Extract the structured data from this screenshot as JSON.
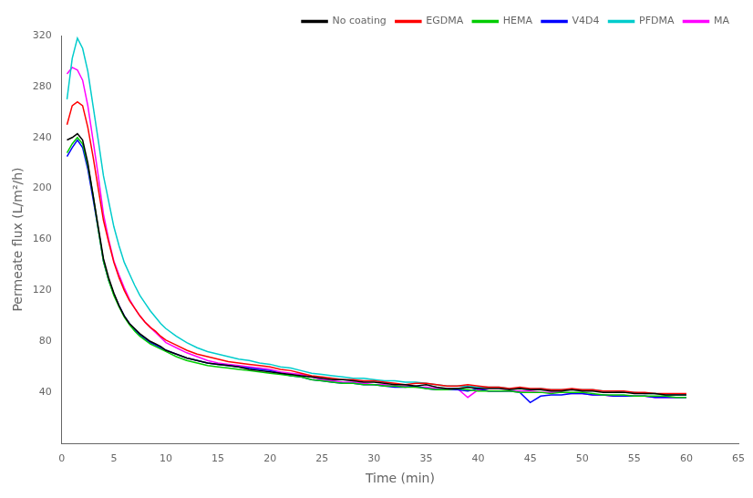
{
  "chart_data": {
    "type": "line",
    "xlabel": "Time (min)",
    "ylabel": "Permeate flux (L/m²/h)",
    "x": [
      0.5,
      1,
      1.5,
      2,
      2.5,
      3,
      3.5,
      4,
      4.5,
      5,
      5.5,
      6,
      6.5,
      7,
      7.5,
      8,
      8.5,
      9,
      9.5,
      10,
      11,
      12,
      13,
      14,
      15,
      16,
      17,
      18,
      19,
      20,
      21,
      22,
      23,
      24,
      25,
      26,
      27,
      28,
      29,
      30,
      31,
      32,
      33,
      34,
      35,
      36,
      37,
      38,
      39,
      40,
      41,
      42,
      43,
      44,
      45,
      46,
      47,
      48,
      49,
      50,
      51,
      52,
      53,
      54,
      55,
      56,
      57,
      58,
      59,
      60
    ],
    "series": [
      {
        "name": "No coating",
        "color": "#000000",
        "values": [
          238,
          240,
          243,
          238,
          220,
          195,
          170,
          145,
          130,
          118,
          108,
          100,
          94,
          90,
          86,
          83,
          80,
          78,
          76,
          73,
          70,
          67,
          65,
          63,
          62,
          61,
          60,
          58,
          57,
          56,
          55,
          54,
          53,
          52,
          51,
          50,
          50,
          49,
          48,
          48,
          47,
          46,
          46,
          45,
          46,
          44,
          43,
          43,
          44,
          43,
          43,
          43,
          42,
          43,
          42,
          42,
          41,
          41,
          42,
          41,
          41,
          40,
          40,
          40,
          39,
          39,
          39,
          38,
          38,
          38
        ]
      },
      {
        "name": "EGDMA",
        "color": "#ff0000",
        "values": [
          250,
          265,
          268,
          265,
          248,
          225,
          200,
          175,
          158,
          142,
          130,
          120,
          112,
          106,
          100,
          95,
          91,
          88,
          84,
          81,
          77,
          73,
          70,
          68,
          66,
          64,
          63,
          62,
          61,
          60,
          58,
          57,
          55,
          53,
          52,
          51,
          50,
          50,
          49,
          49,
          48,
          47,
          46,
          47,
          47,
          46,
          45,
          45,
          46,
          45,
          44,
          44,
          43,
          44,
          43,
          43,
          42,
          42,
          43,
          42,
          42,
          41,
          41,
          41,
          40,
          40,
          39,
          39,
          39,
          39
        ]
      },
      {
        "name": "HEMA",
        "color": "#00cc00",
        "values": [
          228,
          235,
          240,
          235,
          218,
          195,
          168,
          143,
          128,
          116,
          107,
          99,
          93,
          88,
          84,
          81,
          78,
          76,
          74,
          72,
          68,
          65,
          63,
          61,
          60,
          59,
          58,
          57,
          56,
          55,
          54,
          53,
          52,
          50,
          49,
          48,
          47,
          47,
          46,
          46,
          45,
          45,
          44,
          44,
          43,
          42,
          42,
          43,
          42,
          41,
          41,
          41,
          41,
          40,
          40,
          40,
          39,
          40,
          40,
          40,
          39,
          38,
          38,
          38,
          37,
          37,
          37,
          37,
          36,
          36
        ]
      },
      {
        "name": "V4D4",
        "color": "#0000ff",
        "values": [
          225,
          232,
          238,
          232,
          215,
          192,
          168,
          143,
          128,
          117,
          108,
          100,
          94,
          89,
          85,
          82,
          79,
          77,
          75,
          73,
          70,
          67,
          65,
          63,
          62,
          61,
          60,
          59,
          58,
          57,
          55,
          53,
          52,
          50,
          49,
          48,
          47,
          47,
          46,
          46,
          45,
          44,
          44,
          45,
          43,
          42,
          42,
          42,
          41,
          43,
          41,
          41,
          41,
          40,
          32,
          37,
          38,
          38,
          39,
          39,
          38,
          38,
          37,
          37,
          37,
          37,
          36,
          36,
          36,
          36
        ]
      },
      {
        "name": "PFDMA",
        "color": "#00cccc",
        "values": [
          270,
          302,
          318,
          310,
          292,
          265,
          238,
          210,
          190,
          170,
          155,
          142,
          133,
          124,
          116,
          110,
          104,
          99,
          94,
          90,
          84,
          79,
          75,
          72,
          70,
          68,
          66,
          65,
          63,
          62,
          60,
          59,
          57,
          55,
          54,
          53,
          52,
          51,
          51,
          50,
          49,
          49,
          48,
          48,
          47,
          46,
          45,
          45,
          45,
          44,
          44,
          44,
          43,
          43,
          42,
          43,
          42,
          42,
          42,
          42,
          42,
          41,
          41,
          40,
          40,
          39,
          39,
          38,
          38,
          38
        ]
      },
      {
        "name": "MA",
        "color": "#ff00ff",
        "values": [
          290,
          295,
          293,
          285,
          265,
          238,
          210,
          180,
          160,
          143,
          132,
          122,
          113,
          106,
          100,
          95,
          91,
          87,
          83,
          79,
          75,
          71,
          68,
          65,
          63,
          62,
          61,
          60,
          59,
          58,
          56,
          55,
          54,
          52,
          50,
          49,
          48,
          48,
          47,
          46,
          46,
          45,
          45,
          44,
          44,
          43,
          43,
          43,
          36,
          42,
          41,
          41,
          41,
          41,
          41,
          40,
          40,
          40,
          39,
          39,
          38,
          38,
          37,
          37,
          37,
          37,
          36,
          36,
          36,
          36
        ]
      }
    ],
    "xlim": [
      0,
      65
    ],
    "ylim": [
      0,
      320
    ],
    "xticks": [
      0,
      5,
      10,
      15,
      20,
      25,
      30,
      35,
      40,
      45,
      50,
      55,
      60,
      65
    ],
    "yticks": [
      40,
      80,
      120,
      160,
      200,
      240,
      280,
      320
    ],
    "grid": false,
    "legend": "upper right"
  }
}
